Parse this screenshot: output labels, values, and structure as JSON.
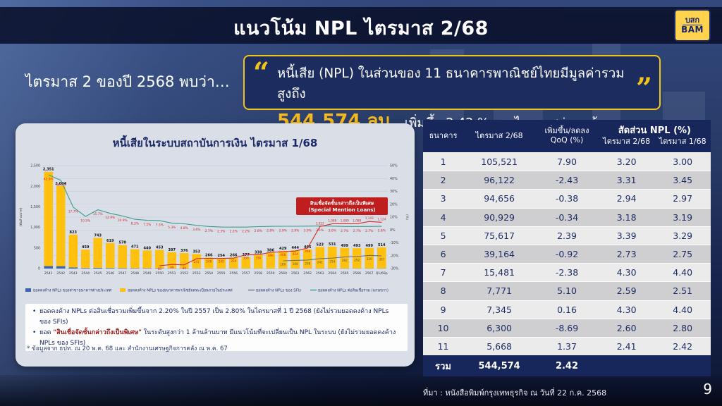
{
  "header": {
    "title": "แนวโน้ม NPL ไตรมาส 2/68",
    "logo_line1": "บสก",
    "logo_line2": "BAM"
  },
  "intro_text": "ไตรมาส 2 ของปี 2568 พบว่า…",
  "quote": {
    "open": "“",
    "close": "”",
    "line1": "หนี้เสีย (NPL) ในส่วนของ 11 ธนาคารพาณิชย์ไทยมีมูลค่ารวมสูงถึง",
    "amount": "544,574 ลบ.",
    "rest": "เพิ่มขึ้น 2.42 % จากไตรมาสก่อนหน้า"
  },
  "chart_data": {
    "type": "bar",
    "title": "หนี้เสียในระบบสถาบันการเงิน ไตรมาส 1/68",
    "categories": [
      "2541",
      "2542",
      "2543",
      "2544",
      "2545",
      "2546",
      "2547",
      "2548",
      "2549",
      "2550",
      "2551",
      "2552",
      "2553",
      "2554",
      "2555",
      "2556",
      "2557",
      "2558",
      "2559",
      "2560",
      "2561",
      "2562",
      "2563",
      "2564",
      "2565",
      "2566",
      "2567",
      "Q1/68p"
    ],
    "left_axis": {
      "title": "(พันล้านบาท)",
      "min": 0,
      "max": 2500,
      "step": 500,
      "ticks": [
        "0",
        "500",
        "1,000",
        "1,500",
        "2,000",
        "2,500"
      ]
    },
    "right_axis": {
      "title": "(%)",
      "min": -30,
      "max": 50,
      "step": 10,
      "ticks": [
        "-30%",
        "-20%",
        "-10%",
        "0%",
        "10%",
        "20%",
        "30%",
        "40%",
        "50%"
      ]
    },
    "series": [
      {
        "name": "ยอดคงค้าง NPLs ของสาขาธนาคารต่างประเทศ",
        "type": "bar",
        "color": "#3a66b0",
        "values": [
          60,
          58,
          28,
          14,
          20,
          14,
          10,
          8,
          8,
          8,
          6,
          6,
          5,
          4,
          4,
          4,
          4,
          4,
          4,
          4,
          4,
          4,
          5,
          5,
          5,
          5,
          5,
          5
        ]
      },
      {
        "name": "ยอดคงค้าง NPLs ของธนาคารพาณิชย์จดทะเบียนภายในประเทศ",
        "type": "bar",
        "color": "#ffc10e",
        "values": [
          2351,
          2004,
          823,
          459,
          743,
          619,
          570,
          471,
          440,
          453,
          397,
          376,
          353,
          266,
          254,
          266,
          277,
          338,
          386,
          429,
          444,
          465,
          523,
          531,
          499,
          493,
          499,
          514
        ],
        "labels": [
          "2,351",
          "2,004",
          "823",
          "459",
          "743",
          "619",
          "570",
          "471",
          "440",
          "453",
          "397",
          "376",
          "353",
          "266",
          "254",
          "266",
          "277",
          "338",
          "386",
          "429",
          "444",
          "465",
          "523",
          "531",
          "499",
          "493",
          "499",
          "514"
        ]
      },
      {
        "name": "ยอดคงค้าง NPLs ของ SFIs",
        "type": "line",
        "axis": "left",
        "color": "#6a7282",
        "values": [
          null,
          null,
          null,
          null,
          null,
          null,
          null,
          null,
          null,
          null,
          null,
          null,
          null,
          null,
          null,
          null,
          null,
          null,
          null,
          189,
          198,
          208,
          241,
          254,
          282,
          292,
          320,
          307
        ]
      },
      {
        "name": "ยอดคงค้าง NPLs ต่อสินเชื่อรวม (แกนขวา)",
        "type": "line",
        "axis": "right",
        "color": "#3c9d8e",
        "values": [
          42.9,
          38.6,
          17.7,
          10.5,
          15.7,
          12.9,
          10.9,
          8.3,
          7.5,
          7.3,
          5.3,
          4.8,
          3.6,
          2.7,
          2.3,
          2.2,
          2.2,
          2.6,
          2.8,
          2.9,
          2.9,
          3.0,
          3.1,
          3.0,
          2.7,
          2.7,
          2.7,
          2.8
        ]
      },
      {
        "name": "สินเชื่อจัดชั้นกล่าวถึงเป็นพิเศษ (Special Mention Loans)",
        "type": "line",
        "axis": "left",
        "color": "#d22b2b",
        "values": [
          null,
          null,
          null,
          null,
          null,
          null,
          null,
          null,
          null,
          66,
          99,
          89,
          241,
          248,
          245,
          254,
          336,
          336,
          396,
          408,
          424,
          498,
          1022,
          1088,
          1089,
          1088,
          1143,
          1124
        ]
      }
    ],
    "annotation": {
      "line1": "สินเชื่อจัดชั้นกล่าวถึงเป็นพิเศษ",
      "line2": "(Special Mention Loans)",
      "color": "#c01e1e"
    },
    "legend_position": "bottom",
    "grid": true
  },
  "notes": {
    "bullet1": "ยอดคงค้าง NPLs ต่อสินเชื่อรวมเพิ่มขึ้นจาก 2.20% ในปี 2557 เป็น 2.80% ในไตรมาสที่ 1 ปี 2568 (ยังไม่รวมยอดคงค้าง NPLs ของ SFIs)",
    "bullet2_prefix": "ยอด ",
    "bullet2_highlight": "\"สินเชื่อจัดชั้นกล่าวถึงเป็นพิเศษ\"",
    "bullet2_rest": " ในระดับสูงกว่า 1 ล้านล้านบาท มีแนวโน้มที่จะเปลี่ยนเป็น NPL ในระบบ (ยังไม่รวมยอดคงค้าง NPLs ของ SFIs)",
    "footnote": "* ข้อมูลจาก ธปท. ณ 20 พ.ค. 68 และ  สำนักงานเศรษฐกิจการคลัง ณ พ.ค. 67"
  },
  "table": {
    "col_bank": "ธนาคาร",
    "col_q2": "ไตรมาส 2/68",
    "col_qoq_line1": "เพิ่มขึ้น/ลดลง",
    "col_qoq_line2": "QoQ (%)",
    "group_npl": "สัดส่วน NPL  (%)",
    "sub_q2": "ไตรมาส 2/68",
    "sub_q1": "ไตรมาส 1/68",
    "rows": [
      [
        "1",
        "105,521",
        "7.90",
        "3.20",
        "3.00"
      ],
      [
        "2",
        "96,122",
        "-2.43",
        "3.31",
        "3.45"
      ],
      [
        "3",
        "94,656",
        "-0.38",
        "2.94",
        "2.97"
      ],
      [
        "4",
        "90,929",
        "-0.34",
        "3.18",
        "3.19"
      ],
      [
        "5",
        "75,617",
        "2.39",
        "3.39",
        "3.29"
      ],
      [
        "6",
        "39,164",
        "-0.92",
        "2.73",
        "2.75"
      ],
      [
        "7",
        "15,481",
        "-2.38",
        "4.30",
        "4.40"
      ],
      [
        "8",
        "7,771",
        "5.10",
        "2.59",
        "2.51"
      ],
      [
        "9",
        "7,345",
        "0.16",
        "4.30",
        "4.40"
      ],
      [
        "10",
        "6,300",
        "-8.69",
        "2.60",
        "2.80"
      ],
      [
        "11",
        "5,668",
        "1.37",
        "2.41",
        "2.42"
      ]
    ],
    "total": [
      "รวม",
      "544,574",
      "2.42",
      "",
      ""
    ]
  },
  "footer": {
    "source": "ที่มา : หนังสือพิมพ์กรุงเทพธุรกิจ ณ วันที่ 22 ก.ค. 2568",
    "page": "9"
  }
}
